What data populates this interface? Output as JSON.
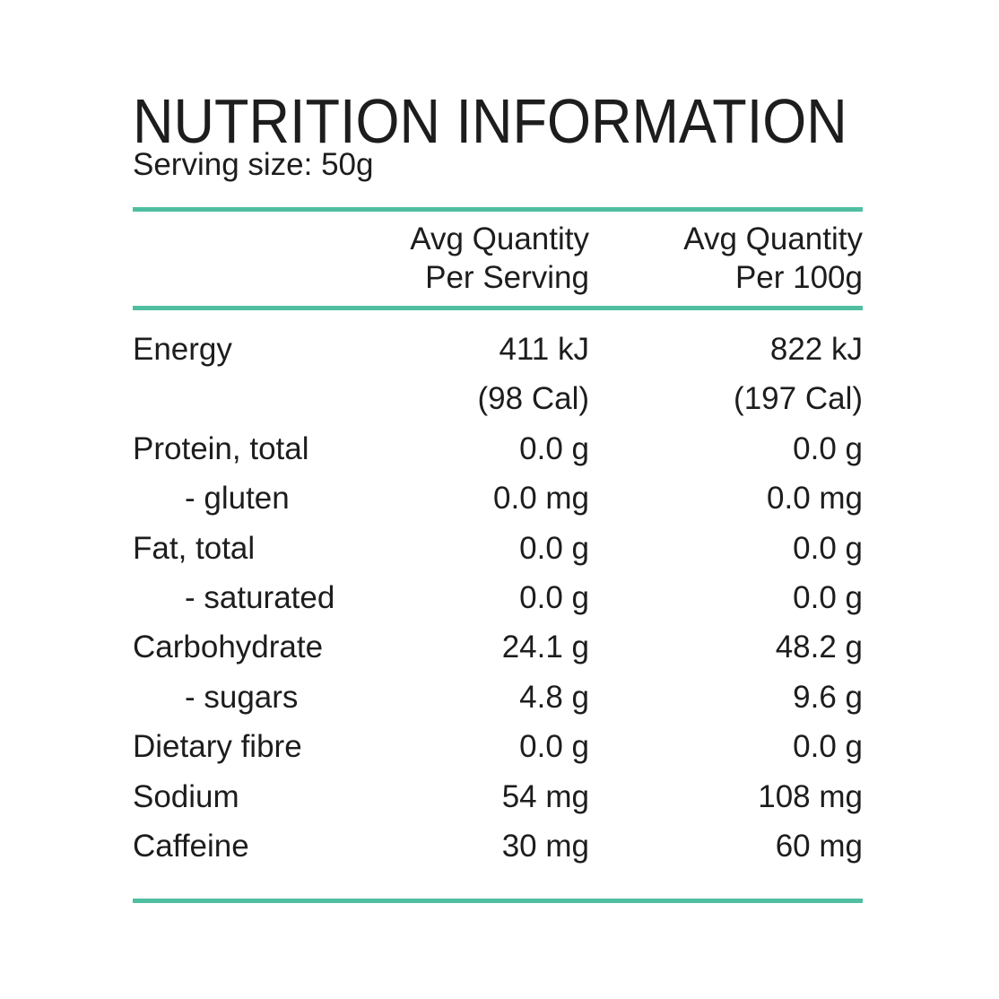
{
  "page": {
    "background_color": "#ffffff",
    "text_color": "#1d1d1d",
    "accent_line_color": "#50bea0"
  },
  "header": {
    "title": "NUTRITION INFORMATION",
    "serving_size": "Serving size: 50g"
  },
  "table": {
    "columns": [
      {
        "line1": "Avg Quantity",
        "line2": "Per Serving"
      },
      {
        "line1": "Avg Quantity",
        "line2": "Per 100g"
      }
    ],
    "rows": [
      {
        "label": "Energy",
        "per_serving": "411 kJ",
        "per_100g": "822 kJ"
      },
      {
        "label": "",
        "per_serving": "(98 Cal)",
        "per_100g": "(197 Cal)"
      },
      {
        "label": "Protein, total",
        "per_serving": "0.0 g",
        "per_100g": "0.0 g"
      },
      {
        "label": "- gluten",
        "per_serving": "0.0 mg",
        "per_100g": "0.0 mg"
      },
      {
        "label": "Fat, total",
        "per_serving": "0.0 g",
        "per_100g": "0.0 g"
      },
      {
        "label": "- saturated",
        "per_serving": "0.0 g",
        "per_100g": "0.0 g"
      },
      {
        "label": "Carbohydrate",
        "per_serving": "24.1 g",
        "per_100g": "48.2 g"
      },
      {
        "label": "- sugars",
        "per_serving": "4.8 g",
        "per_100g": "9.6 g"
      },
      {
        "label": "Dietary fibre",
        "per_serving": "0.0 g",
        "per_100g": "0.0 g"
      },
      {
        "label": "Sodium",
        "per_serving": "54 mg",
        "per_100g": "108 mg"
      },
      {
        "label": "Caffeine",
        "per_serving": "30 mg",
        "per_100g": "60 mg"
      }
    ]
  }
}
